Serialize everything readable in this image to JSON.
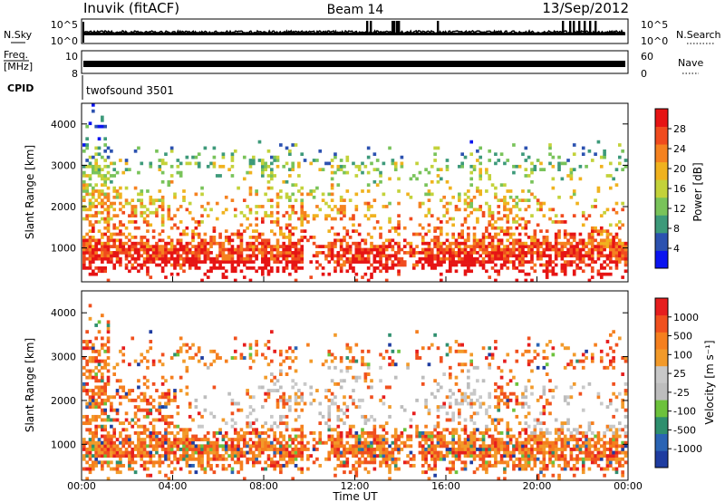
{
  "header": {
    "station": "Inuvik (fitACF)",
    "beam": "Beam 14",
    "date": "13/Sep/2012"
  },
  "side_labels": {
    "nsky": "N.Sky",
    "nsearch": "N.Search",
    "freq_top": "Freq.",
    "freq_unit": "[MHz]",
    "nave": "Nave",
    "cpid": "CPID"
  },
  "cpid_value": "twofsound 3501",
  "strip_ticks": {
    "noise_left": [
      "10^5",
      "10^0"
    ],
    "noise_right": [
      "10^5",
      "10^0"
    ],
    "freq_left": [
      "10",
      "8"
    ],
    "freq_right": [
      "60",
      "0"
    ]
  },
  "chart_data": [
    {
      "type": "heatmap",
      "name": "power",
      "ylabel": "Slant Range [km]",
      "ylim": [
        180,
        4500
      ],
      "yticks": [
        "1000",
        "2000",
        "3000",
        "4000"
      ],
      "colorbar_label": "Power [dB]",
      "colorbar_ticks": [
        "4",
        "8",
        "12",
        "16",
        "20",
        "24",
        "28"
      ],
      "colors": [
        "#0a14f0",
        "#2c52b0",
        "#3d9a7a",
        "#79c35a",
        "#c3d23a",
        "#f0b21e",
        "#f58220",
        "#f04b1e",
        "#e61414"
      ]
    },
    {
      "type": "heatmap",
      "name": "velocity",
      "ylabel": "Slant Range [km]",
      "ylim": [
        180,
        4500
      ],
      "yticks": [
        "1000",
        "2000",
        "3000",
        "4000"
      ],
      "colorbar_label": "Velocity [m s⁻¹]",
      "colorbar_ticks": [
        "1000",
        "500",
        "100",
        "25",
        "-25",
        "-100",
        "-500",
        "-1000"
      ],
      "colors": [
        "#1e3ca0",
        "#2a64b4",
        "#2e8f6e",
        "#6cc23c",
        "#bdbdbd",
        "#c8c8c8",
        "#f29a2a",
        "#f57f1e",
        "#f0501e",
        "#e61e1e"
      ]
    }
  ],
  "time_axis": {
    "label": "Time UT",
    "ticks": [
      "00:00",
      "04:00",
      "08:00",
      "12:00",
      "16:00",
      "20:00",
      "00:00"
    ]
  }
}
